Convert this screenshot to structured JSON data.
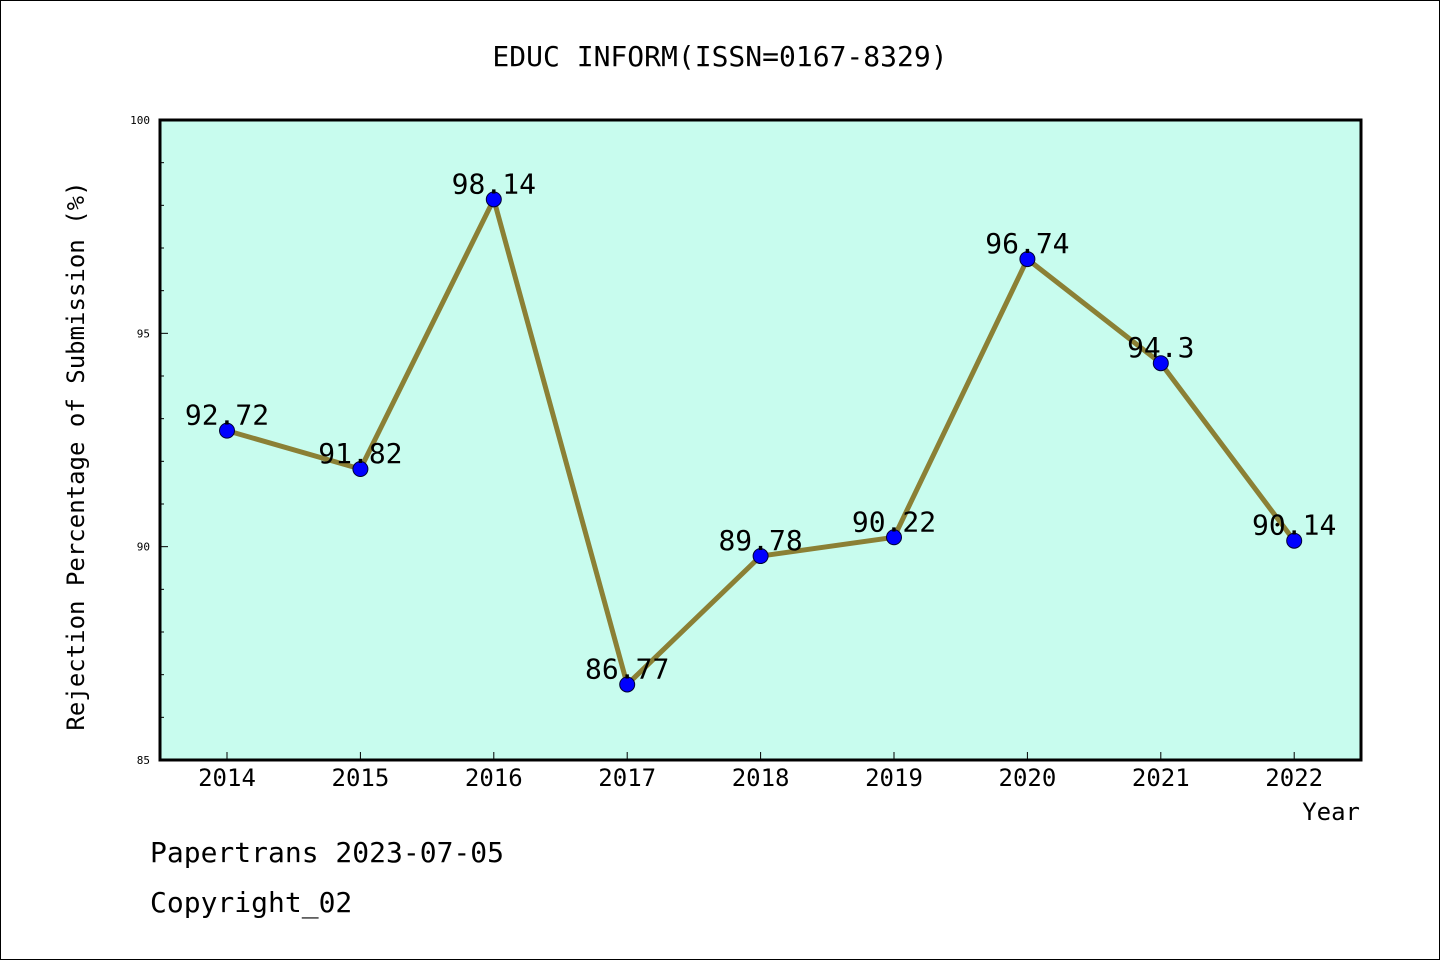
{
  "chart_data": {
    "type": "line",
    "title": "EDUC INFORM(ISSN=0167-8329)",
    "xlabel": "Year",
    "ylabel": "Rejection Percentage of Submission (%)",
    "categories": [
      "2014",
      "2015",
      "2016",
      "2017",
      "2018",
      "2019",
      "2020",
      "2021",
      "2022"
    ],
    "values": [
      92.72,
      91.82,
      98.14,
      86.77,
      89.78,
      90.22,
      96.74,
      94.3,
      90.14
    ],
    "data_labels": [
      "92.72",
      "91.82",
      "98.14",
      "86.77",
      "89.78",
      "90.22",
      "96.74",
      "94.3",
      "90.14"
    ],
    "ylim": [
      85,
      100
    ],
    "yticks": [
      "85",
      "90",
      "95",
      "100"
    ],
    "grid": false,
    "colors": {
      "plot_background": "#c8fcee",
      "line": "#8b8035",
      "marker": "#0000ff"
    }
  },
  "footer": {
    "line1": "Papertrans 2023-07-05",
    "line2": "Copyright_02"
  }
}
